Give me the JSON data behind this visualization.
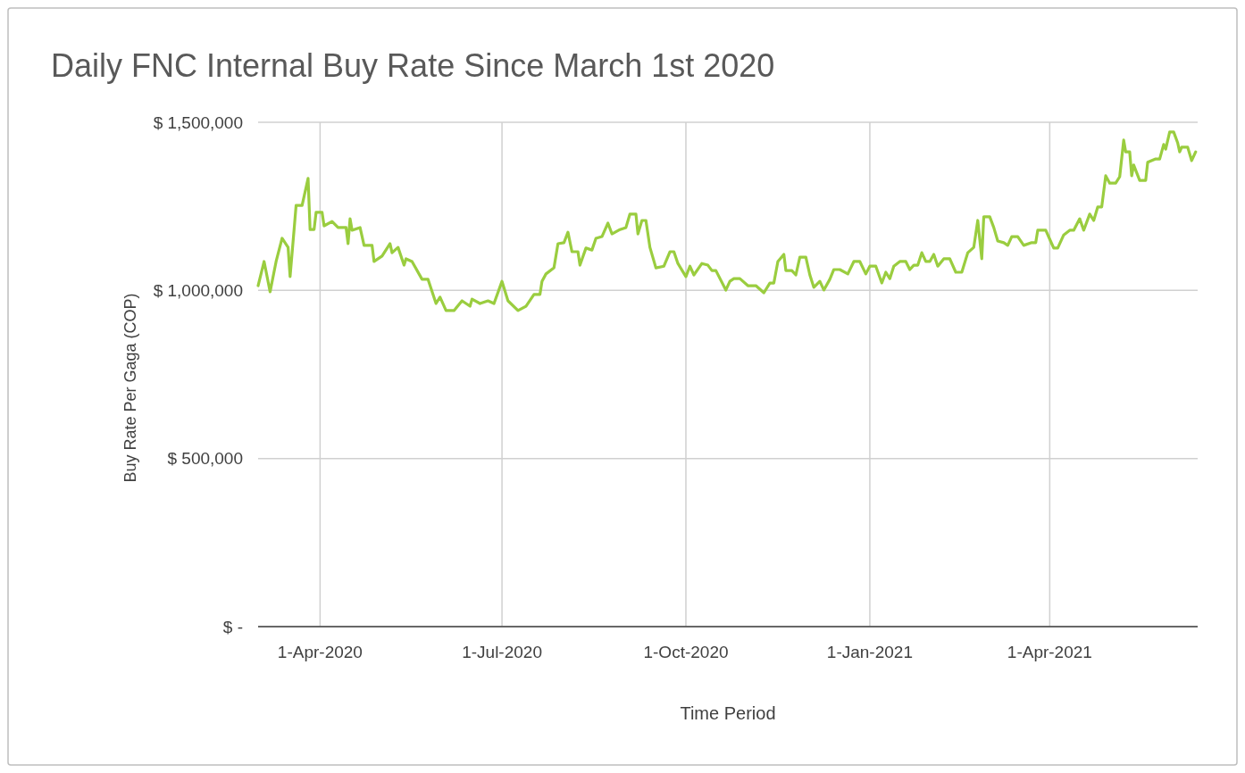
{
  "chart_data": {
    "type": "line",
    "title": "Daily FNC Internal Buy Rate Since March 1st 2020",
    "xlabel": "Time Period",
    "ylabel": "Buy Rate Per Gaga (COP)",
    "x": [
      "2020-03-01",
      "2020-03-04",
      "2020-03-07",
      "2020-03-10",
      "2020-03-13",
      "2020-03-16",
      "2020-03-17",
      "2020-03-19",
      "2020-03-20",
      "2020-03-23",
      "2020-03-26",
      "2020-03-27",
      "2020-03-29",
      "2020-03-30",
      "2020-04-02",
      "2020-04-03",
      "2020-04-07",
      "2020-04-10",
      "2020-04-14",
      "2020-04-15",
      "2020-04-16",
      "2020-04-17",
      "2020-04-21",
      "2020-04-23",
      "2020-04-27",
      "2020-04-28",
      "2020-05-02",
      "2020-05-06",
      "2020-05-07",
      "2020-05-10",
      "2020-05-13",
      "2020-05-14",
      "2020-05-17",
      "2020-05-22",
      "2020-05-25",
      "2020-05-29",
      "2020-05-31",
      "2020-06-03",
      "2020-06-07",
      "2020-06-11",
      "2020-06-15",
      "2020-06-16",
      "2020-06-20",
      "2020-06-24",
      "2020-06-27",
      "2020-07-01",
      "2020-07-04",
      "2020-07-09",
      "2020-07-13",
      "2020-07-17",
      "2020-07-20",
      "2020-07-21",
      "2020-07-23",
      "2020-07-27",
      "2020-07-29",
      "2020-08-01",
      "2020-08-03",
      "2020-08-05",
      "2020-08-08",
      "2020-08-09",
      "2020-08-12",
      "2020-08-15",
      "2020-08-17",
      "2020-08-20",
      "2020-08-23",
      "2020-08-25",
      "2020-08-29",
      "2020-09-01",
      "2020-09-03",
      "2020-09-06",
      "2020-09-07",
      "2020-09-09",
      "2020-09-11",
      "2020-09-13",
      "2020-09-16",
      "2020-09-20",
      "2020-09-23",
      "2020-09-25",
      "2020-09-27",
      "2020-10-01",
      "2020-10-03",
      "2020-10-05",
      "2020-10-09",
      "2020-10-12",
      "2020-10-14",
      "2020-10-16",
      "2020-10-21",
      "2020-10-23",
      "2020-10-25",
      "2020-10-28",
      "2020-11-01",
      "2020-11-05",
      "2020-11-09",
      "2020-11-12",
      "2020-11-14",
      "2020-11-16",
      "2020-11-19",
      "2020-11-20",
      "2020-11-23",
      "2020-11-25",
      "2020-11-27",
      "2020-11-30",
      "2020-12-02",
      "2020-12-04",
      "2020-12-07",
      "2020-12-09",
      "2020-12-12",
      "2020-12-14",
      "2020-12-17",
      "2020-12-21",
      "2020-12-24",
      "2020-12-27",
      "2020-12-30",
      "2021-01-01",
      "2021-01-04",
      "2021-01-07",
      "2021-01-09",
      "2021-01-11",
      "2021-01-13",
      "2021-01-16",
      "2021-01-19",
      "2021-01-21",
      "2021-01-23",
      "2021-01-25",
      "2021-01-27",
      "2021-01-29",
      "2021-01-31",
      "2021-02-02",
      "2021-02-04",
      "2021-02-07",
      "2021-02-10",
      "2021-02-13",
      "2021-02-16",
      "2021-02-19",
      "2021-02-22",
      "2021-02-24",
      "2021-02-26",
      "2021-02-27",
      "2021-03-02",
      "2021-03-04",
      "2021-03-06",
      "2021-03-09",
      "2021-03-11",
      "2021-03-13",
      "2021-03-16",
      "2021-03-19",
      "2021-03-23",
      "2021-03-25",
      "2021-03-26",
      "2021-03-30",
      "2021-04-02",
      "2021-04-03",
      "2021-04-05",
      "2021-04-08",
      "2021-04-11",
      "2021-04-13",
      "2021-04-16",
      "2021-04-18",
      "2021-04-21",
      "2021-04-23",
      "2021-04-25",
      "2021-04-27",
      "2021-04-29",
      "2021-05-01",
      "2021-05-04",
      "2021-05-06",
      "2021-05-08",
      "2021-05-09",
      "2021-05-11",
      "2021-05-12",
      "2021-05-13",
      "2021-05-16",
      "2021-05-19",
      "2021-05-20",
      "2021-05-24",
      "2021-05-26",
      "2021-05-28",
      "2021-05-29",
      "2021-05-31",
      "2021-06-02",
      "2021-06-04",
      "2021-06-05",
      "2021-06-06",
      "2021-06-09",
      "2021-06-11",
      "2021-06-13"
    ],
    "series": [
      {
        "color": "#9acd3f",
        "values": [
          1014000,
          1086000,
          996000,
          1086000,
          1155000,
          1128000,
          1041000,
          1181000,
          1253000,
          1253000,
          1333000,
          1181000,
          1181000,
          1232000,
          1232000,
          1192000,
          1205000,
          1187000,
          1187000,
          1139000,
          1213000,
          1179000,
          1187000,
          1134000,
          1134000,
          1086000,
          1102000,
          1139000,
          1112000,
          1128000,
          1075000,
          1094000,
          1086000,
          1033000,
          1033000,
          961000,
          980000,
          940000,
          940000,
          969000,
          953000,
          974000,
          961000,
          969000,
          961000,
          1027000,
          969000,
          940000,
          953000,
          988000,
          988000,
          1027000,
          1049000,
          1067000,
          1139000,
          1142000,
          1173000,
          1115000,
          1115000,
          1075000,
          1126000,
          1120000,
          1155000,
          1160000,
          1200000,
          1168000,
          1181000,
          1187000,
          1227000,
          1227000,
          1168000,
          1208000,
          1208000,
          1128000,
          1067000,
          1072000,
          1115000,
          1115000,
          1080000,
          1041000,
          1072000,
          1046000,
          1080000,
          1075000,
          1059000,
          1059000,
          1001000,
          1027000,
          1035000,
          1035000,
          1014000,
          1014000,
          993000,
          1022000,
          1022000,
          1086000,
          1107000,
          1059000,
          1059000,
          1046000,
          1099000,
          1099000,
          1046000,
          1009000,
          1027000,
          1001000,
          1033000,
          1062000,
          1062000,
          1049000,
          1086000,
          1086000,
          1049000,
          1072000,
          1072000,
          1022000,
          1054000,
          1035000,
          1072000,
          1086000,
          1086000,
          1062000,
          1075000,
          1075000,
          1112000,
          1086000,
          1086000,
          1107000,
          1072000,
          1094000,
          1094000,
          1054000,
          1054000,
          1112000,
          1128000,
          1208000,
          1094000,
          1219000,
          1219000,
          1187000,
          1147000,
          1142000,
          1134000,
          1160000,
          1160000,
          1134000,
          1142000,
          1142000,
          1179000,
          1179000,
          1139000,
          1126000,
          1126000,
          1165000,
          1179000,
          1179000,
          1213000,
          1179000,
          1227000,
          1208000,
          1248000,
          1248000,
          1341000,
          1319000,
          1319000,
          1338000,
          1447000,
          1412000,
          1412000,
          1341000,
          1373000,
          1327000,
          1327000,
          1381000,
          1391000,
          1391000,
          1434000,
          1420000,
          1471000,
          1471000,
          1439000,
          1412000,
          1426000,
          1426000,
          1386000,
          1412000
        ]
      }
    ],
    "xlim": [
      "2020-03-01",
      "2021-06-14"
    ],
    "xticks": [
      {
        "value": "2020-04-01",
        "label": "1-Apr-2020"
      },
      {
        "value": "2020-07-01",
        "label": "1-Jul-2020"
      },
      {
        "value": "2020-10-01",
        "label": "1-Oct-2020"
      },
      {
        "value": "2021-01-01",
        "label": "1-Jan-2021"
      },
      {
        "value": "2021-04-01",
        "label": "1-Apr-2021"
      }
    ],
    "ylim": [
      0,
      1500000
    ],
    "yticks": [
      {
        "value": 0,
        "label": "$ -"
      },
      {
        "value": 500000,
        "label": "$ 500,000"
      },
      {
        "value": 1000000,
        "label": "$ 1,000,000"
      },
      {
        "value": 1500000,
        "label": "$ 1,500,000"
      }
    ],
    "grid": true
  }
}
